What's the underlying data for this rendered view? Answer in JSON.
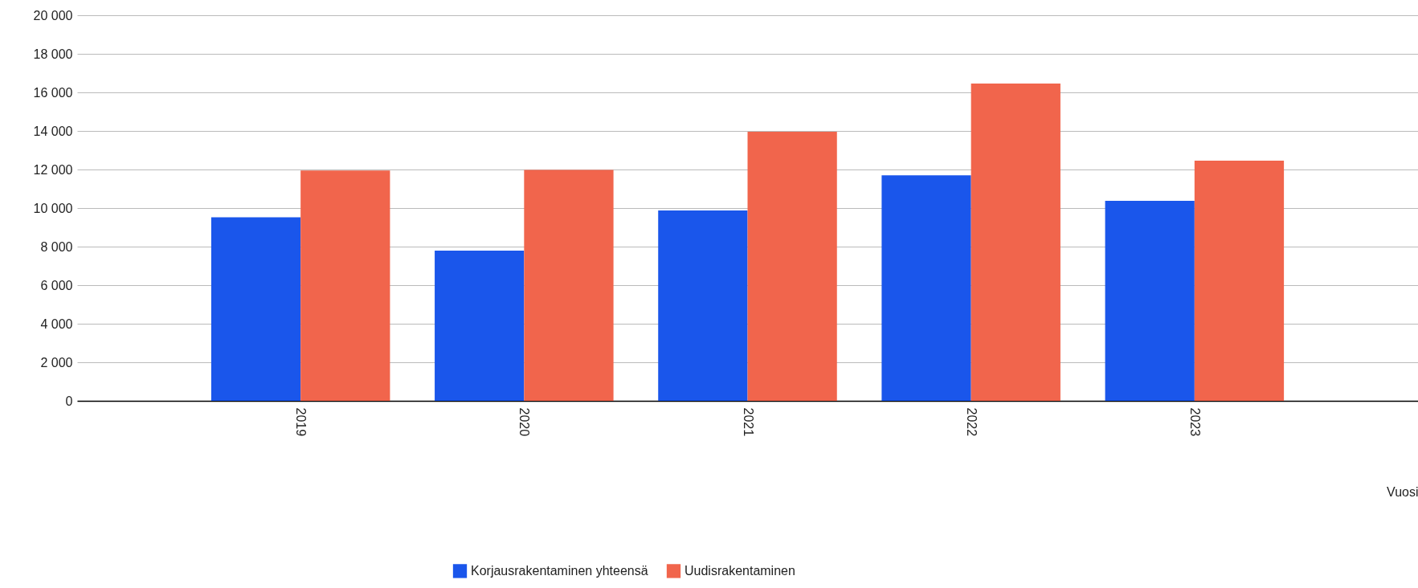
{
  "chart_data": {
    "type": "bar",
    "xlabel": "Vuosi",
    "categories": [
      "2019",
      "2020",
      "2021",
      "2022",
      "2023"
    ],
    "series": [
      {
        "name": "Korjausrakentaminen yhteensä",
        "color": "#1a56eb",
        "values": [
          9520,
          7790,
          9870,
          11700,
          10370
        ]
      },
      {
        "name": "Uudisrakentaminen",
        "color": "#f1654c",
        "values": [
          11950,
          11980,
          13960,
          16460,
          12460
        ]
      }
    ],
    "ylim": [
      0,
      20000
    ],
    "yticks": [
      0,
      {
        "value": 2000,
        "label": "2 000"
      },
      {
        "value": 4000,
        "label": "4 000"
      },
      {
        "value": 6000,
        "label": "6 000"
      },
      {
        "value": 8000,
        "label": "8 000"
      },
      {
        "value": 10000,
        "label": "10 000"
      },
      {
        "value": 12000,
        "label": "12 000"
      },
      {
        "value": 14000,
        "label": "14 000"
      },
      {
        "value": 16000,
        "label": "16 000"
      },
      {
        "value": 18000,
        "label": "18 000"
      },
      {
        "value": 20000,
        "label": "20 000"
      }
    ],
    "grid": "y",
    "legend": "bottom"
  }
}
